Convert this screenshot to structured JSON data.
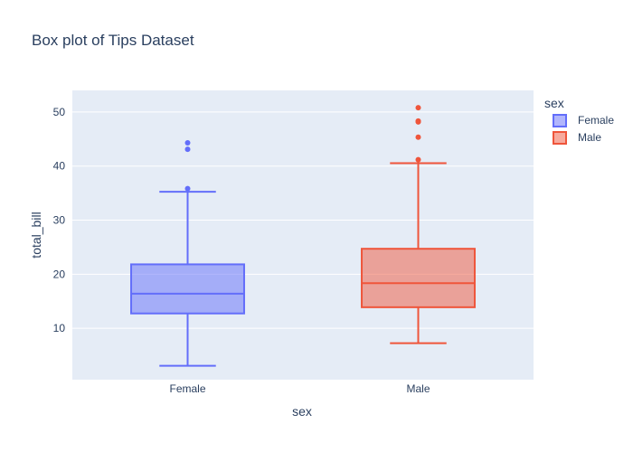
{
  "chart_data": {
    "type": "box",
    "title": "Box plot of Tips Dataset",
    "xlabel": "sex",
    "ylabel": "total_bill",
    "ylim": [
      0.5,
      54
    ],
    "yticks": [
      10,
      20,
      30,
      40,
      50
    ],
    "grid": true,
    "legend": {
      "title": "sex",
      "placement": "top-right"
    },
    "categories": [
      "Female",
      "Male"
    ],
    "series": [
      {
        "name": "Female",
        "color": "#636efa",
        "fill": "rgba(99,110,250,0.5)",
        "lower_fence": 3.07,
        "q1": 12.75,
        "median": 16.4,
        "q3": 21.83,
        "upper_fence": 35.26,
        "outliers": [
          35.83,
          43.11,
          44.3
        ]
      },
      {
        "name": "Male",
        "color": "#ef553b",
        "fill": "rgba(239,85,59,0.5)",
        "lower_fence": 7.25,
        "q1": 13.9,
        "median": 18.35,
        "q3": 24.71,
        "upper_fence": 40.55,
        "outliers": [
          41.19,
          45.35,
          48.17,
          48.27,
          48.33,
          50.81
        ]
      }
    ]
  }
}
